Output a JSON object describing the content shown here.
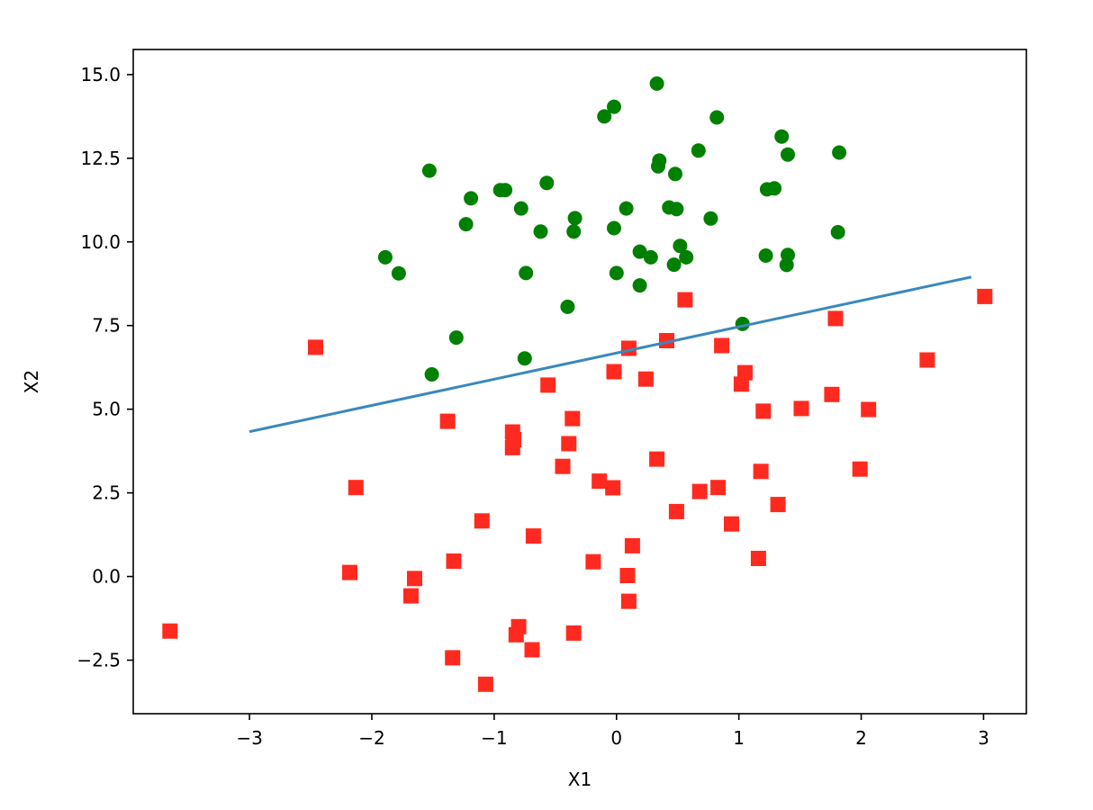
{
  "chart_data": {
    "type": "scatter",
    "title": "",
    "xlabel": "X1",
    "ylabel": "X2",
    "xlim": [
      -3.95,
      3.35
    ],
    "ylim": [
      -4.1,
      15.75
    ],
    "x_ticks": [
      -3,
      -2,
      -1,
      0,
      1,
      2,
      3
    ],
    "x_tick_labels": [
      "−3",
      "−2",
      "−1",
      "0",
      "1",
      "2",
      "3"
    ],
    "y_ticks": [
      -2.5,
      0.0,
      2.5,
      5.0,
      7.5,
      10.0,
      12.5,
      15.0
    ],
    "y_tick_labels": [
      "−2.5",
      "0.0",
      "2.5",
      "5.0",
      "7.5",
      "10.0",
      "12.5",
      "15.0"
    ],
    "grid": false,
    "legend": "none",
    "series": [
      {
        "kind": "scatter",
        "marker": "circle",
        "color": "#008000",
        "points": [
          [
            0.33,
            14.73
          ],
          [
            -0.1,
            13.75
          ],
          [
            -0.02,
            14.04
          ],
          [
            0.82,
            13.72
          ],
          [
            1.35,
            13.15
          ],
          [
            1.82,
            12.67
          ],
          [
            1.4,
            12.61
          ],
          [
            0.35,
            12.43
          ],
          [
            0.34,
            12.26
          ],
          [
            0.48,
            12.03
          ],
          [
            0.67,
            12.73
          ],
          [
            -1.53,
            12.13
          ],
          [
            -0.57,
            11.76
          ],
          [
            -0.91,
            11.55
          ],
          [
            -0.95,
            11.55
          ],
          [
            -1.19,
            11.3
          ],
          [
            -0.78,
            11.0
          ],
          [
            0.08,
            11.0
          ],
          [
            0.43,
            11.03
          ],
          [
            0.49,
            10.98
          ],
          [
            1.23,
            11.57
          ],
          [
            1.29,
            11.6
          ],
          [
            -0.34,
            10.71
          ],
          [
            0.77,
            10.7
          ],
          [
            -1.23,
            10.53
          ],
          [
            -0.02,
            10.41
          ],
          [
            -0.35,
            10.31
          ],
          [
            -0.62,
            10.31
          ],
          [
            1.81,
            10.29
          ],
          [
            0.52,
            9.88
          ],
          [
            0.19,
            9.71
          ],
          [
            0.28,
            9.54
          ],
          [
            0.57,
            9.54
          ],
          [
            1.22,
            9.59
          ],
          [
            1.4,
            9.61
          ],
          [
            1.39,
            9.31
          ],
          [
            0.47,
            9.32
          ],
          [
            -1.89,
            9.54
          ],
          [
            -1.78,
            9.06
          ],
          [
            -0.74,
            9.07
          ],
          [
            0.0,
            9.07
          ],
          [
            0.19,
            8.7
          ],
          [
            -0.4,
            8.06
          ],
          [
            1.03,
            7.55
          ],
          [
            -1.31,
            7.14
          ],
          [
            -0.75,
            6.52
          ],
          [
            -1.51,
            6.04
          ]
        ]
      },
      {
        "kind": "scatter",
        "marker": "square",
        "color": "#ff2a1f",
        "points": [
          [
            3.01,
            8.37
          ],
          [
            0.56,
            8.27
          ],
          [
            1.79,
            7.71
          ],
          [
            0.41,
            7.05
          ],
          [
            0.1,
            6.82
          ],
          [
            0.86,
            6.9
          ],
          [
            -2.46,
            6.85
          ],
          [
            2.54,
            6.47
          ],
          [
            1.05,
            6.09
          ],
          [
            -0.02,
            6.12
          ],
          [
            0.24,
            5.9
          ],
          [
            1.02,
            5.75
          ],
          [
            -0.56,
            5.72
          ],
          [
            1.76,
            5.44
          ],
          [
            1.51,
            5.02
          ],
          [
            2.06,
            4.99
          ],
          [
            1.2,
            4.94
          ],
          [
            -0.36,
            4.72
          ],
          [
            -1.38,
            4.64
          ],
          [
            -0.85,
            4.32
          ],
          [
            -0.84,
            4.09
          ],
          [
            -0.85,
            3.85
          ],
          [
            -0.39,
            3.97
          ],
          [
            0.33,
            3.51
          ],
          [
            -0.44,
            3.29
          ],
          [
            1.99,
            3.21
          ],
          [
            1.18,
            3.14
          ],
          [
            -2.13,
            2.66
          ],
          [
            -0.14,
            2.85
          ],
          [
            -0.03,
            2.65
          ],
          [
            0.83,
            2.66
          ],
          [
            0.68,
            2.54
          ],
          [
            1.32,
            2.15
          ],
          [
            0.49,
            1.94
          ],
          [
            -1.1,
            1.66
          ],
          [
            0.94,
            1.57
          ],
          [
            -0.68,
            1.21
          ],
          [
            0.13,
            0.92
          ],
          [
            1.16,
            0.54
          ],
          [
            -1.33,
            0.46
          ],
          [
            -0.19,
            0.44
          ],
          [
            -2.18,
            0.12
          ],
          [
            0.09,
            0.03
          ],
          [
            -1.65,
            -0.06
          ],
          [
            -1.68,
            -0.58
          ],
          [
            0.1,
            -0.74
          ],
          [
            -0.8,
            -1.5
          ],
          [
            -0.82,
            -1.74
          ],
          [
            -3.65,
            -1.63
          ],
          [
            -0.35,
            -1.69
          ],
          [
            -0.69,
            -2.19
          ],
          [
            -1.34,
            -2.43
          ],
          [
            -1.07,
            -3.22
          ]
        ]
      },
      {
        "kind": "line",
        "color": "#3a88bd",
        "points": [
          [
            -3.0,
            4.33
          ],
          [
            2.9,
            8.95
          ]
        ]
      }
    ]
  }
}
